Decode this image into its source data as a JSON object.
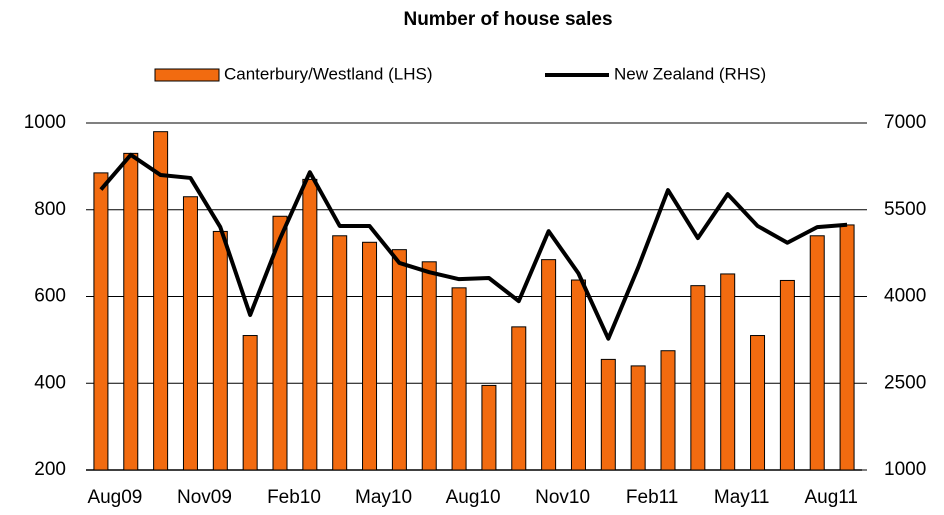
{
  "chart_data": {
    "type": "bar-line",
    "title": "Number of house sales",
    "categories": [
      "Aug09",
      null,
      null,
      "Nov09",
      null,
      null,
      "Feb10",
      null,
      null,
      "May10",
      null,
      null,
      "Aug10",
      null,
      null,
      "Nov10",
      null,
      null,
      "Feb11",
      null,
      null,
      "May11",
      null,
      null,
      "Aug11",
      null
    ],
    "series": [
      {
        "name": "Canterbury/Westland (LHS)",
        "type": "bar",
        "color": "#f26b10",
        "values": [
          885,
          930,
          980,
          830,
          750,
          510,
          785,
          870,
          740,
          725,
          708,
          680,
          620,
          395,
          530,
          685,
          638,
          455,
          440,
          475,
          625,
          652,
          510,
          637,
          740,
          765
        ]
      },
      {
        "name": "New Zealand (RHS)",
        "type": "line",
        "axis": "y2",
        "color": "#000000",
        "values": [
          5850,
          6450,
          6100,
          6050,
          5200,
          3680,
          5000,
          6150,
          5220,
          5220,
          4580,
          4420,
          4300,
          4320,
          3920,
          5130,
          4400,
          3270,
          4500,
          5840,
          5010,
          5770,
          5220,
          4930,
          5200,
          5240
        ]
      }
    ],
    "ylim": [
      200,
      1000
    ],
    "yticks": [
      200,
      400,
      600,
      800,
      1000
    ],
    "y2lim": [
      1000,
      7000
    ],
    "y2ticks": [
      1000,
      2500,
      4000,
      5500,
      7000
    ],
    "grid": true,
    "legend": "top"
  }
}
